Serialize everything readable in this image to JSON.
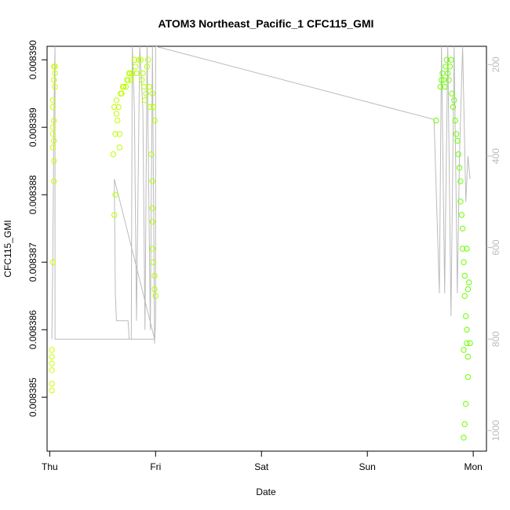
{
  "chart_data": {
    "type": "scatter",
    "title": "ATOM3 Northeast_Pacific_1 CFC115_GMI",
    "xlabel": "Date",
    "ylabel": "CFC115_GMI",
    "x_ticks": [
      "Thu",
      "Fri",
      "Sat",
      "Sun",
      "Mon"
    ],
    "y_ticks": [
      "0.008385",
      "0.008386",
      "0.008387",
      "0.008388",
      "0.008389",
      "0.008390"
    ],
    "y_tick_values": [
      0.008385,
      0.008386,
      0.008387,
      0.008388,
      0.008389,
      0.00839
    ],
    "y2_ticks": [
      "200",
      "400",
      "600",
      "800",
      "1000"
    ],
    "y2_tick_values": [
      200,
      400,
      600,
      800,
      1000
    ],
    "ylim": [
      0.0083842,
      0.0083902
    ],
    "xlim_days": [
      -0.025,
      4.125
    ],
    "y2lim": [
      1045,
      160
    ],
    "series": [
      {
        "kind": "points",
        "color_scale": [
          "#ccff00",
          "#66ff00"
        ],
        "values": [
          [
            0.02,
            0.0083857
          ],
          [
            0.02,
            0.0083856
          ],
          [
            0.02,
            0.0083855
          ],
          [
            0.02,
            0.0083854
          ],
          [
            0.02,
            0.0083852
          ],
          [
            0.02,
            0.0083851
          ],
          [
            0.03,
            0.008387
          ],
          [
            0.03,
            0.0083887
          ],
          [
            0.03,
            0.0083889
          ],
          [
            0.03,
            0.008389
          ],
          [
            0.03,
            0.0083893
          ],
          [
            0.03,
            0.0083894
          ],
          [
            0.04,
            0.0083882
          ],
          [
            0.04,
            0.0083885
          ],
          [
            0.04,
            0.0083888
          ],
          [
            0.04,
            0.0083891
          ],
          [
            0.04,
            0.0083899
          ],
          [
            0.04,
            0.0083897
          ],
          [
            0.05,
            0.0083899
          ],
          [
            0.05,
            0.0083898
          ],
          [
            0.05,
            0.0083896
          ],
          [
            0.6,
            0.0083886
          ],
          [
            0.61,
            0.0083893
          ],
          [
            0.61,
            0.0083877
          ],
          [
            0.62,
            0.008388
          ],
          [
            0.62,
            0.0083889
          ],
          [
            0.63,
            0.0083892
          ],
          [
            0.63,
            0.0083894
          ],
          [
            0.64,
            0.0083891
          ],
          [
            0.65,
            0.0083893
          ],
          [
            0.66,
            0.0083889
          ],
          [
            0.66,
            0.0083887
          ],
          [
            0.67,
            0.0083895
          ],
          [
            0.68,
            0.0083895
          ],
          [
            0.69,
            0.0083896
          ],
          [
            0.7,
            0.0083896
          ],
          [
            0.72,
            0.0083896
          ],
          [
            0.73,
            0.0083897
          ],
          [
            0.74,
            0.0083897
          ],
          [
            0.75,
            0.0083898
          ],
          [
            0.76,
            0.0083898
          ],
          [
            0.77,
            0.0083897
          ],
          [
            0.78,
            0.0083898
          ],
          [
            0.8,
            0.00839
          ],
          [
            0.81,
            0.0083899
          ],
          [
            0.82,
            0.0083898
          ],
          [
            0.84,
            0.00839
          ],
          [
            0.86,
            0.00839
          ],
          [
            0.87,
            0.0083897
          ],
          [
            0.88,
            0.0083898
          ],
          [
            0.89,
            0.0083896
          ],
          [
            0.9,
            0.0083894
          ],
          [
            0.91,
            0.0083895
          ],
          [
            0.92,
            0.0083899
          ],
          [
            0.93,
            0.00839
          ],
          [
            0.94,
            0.0083896
          ],
          [
            0.95,
            0.0083893
          ],
          [
            0.96,
            0.0083886
          ],
          [
            0.97,
            0.0083882
          ],
          [
            0.97,
            0.0083878
          ],
          [
            0.97,
            0.0083876
          ],
          [
            0.97,
            0.0083872
          ],
          [
            0.98,
            0.008387
          ],
          [
            0.99,
            0.0083868
          ],
          [
            0.99,
            0.0083866
          ],
          [
            1.0,
            0.0083865
          ],
          [
            0.98,
            0.0083893
          ],
          [
            0.99,
            0.0083891
          ],
          [
            0.97,
            0.0083895
          ],
          [
            3.65,
            0.0083891
          ],
          [
            3.69,
            0.0083896
          ],
          [
            3.7,
            0.0083897
          ],
          [
            3.71,
            0.0083898
          ],
          [
            3.72,
            0.0083897
          ],
          [
            3.73,
            0.0083896
          ],
          [
            3.74,
            0.0083899
          ],
          [
            3.75,
            0.00839
          ],
          [
            3.76,
            0.0083898
          ],
          [
            3.77,
            0.0083897
          ],
          [
            3.78,
            0.0083899
          ],
          [
            3.79,
            0.00839
          ],
          [
            3.8,
            0.0083895
          ],
          [
            3.81,
            0.0083893
          ],
          [
            3.82,
            0.0083894
          ],
          [
            3.83,
            0.0083891
          ],
          [
            3.84,
            0.0083889
          ],
          [
            3.85,
            0.0083888
          ],
          [
            3.86,
            0.0083886
          ],
          [
            3.87,
            0.0083884
          ],
          [
            3.88,
            0.0083882
          ],
          [
            3.88,
            0.0083879
          ],
          [
            3.89,
            0.0083877
          ],
          [
            3.9,
            0.0083875
          ],
          [
            3.9,
            0.0083872
          ],
          [
            3.91,
            0.008387
          ],
          [
            3.92,
            0.0083868
          ],
          [
            3.92,
            0.0083865
          ],
          [
            3.93,
            0.0083862
          ],
          [
            3.94,
            0.008386
          ],
          [
            3.94,
            0.0083858
          ],
          [
            3.95,
            0.0083856
          ],
          [
            3.95,
            0.0083853
          ],
          [
            3.93,
            0.0083849
          ],
          [
            3.92,
            0.0083846
          ],
          [
            3.91,
            0.0083844
          ],
          [
            3.91,
            0.0083857
          ],
          [
            3.94,
            0.0083872
          ],
          [
            3.95,
            0.0083866
          ],
          [
            3.96,
            0.0083867
          ],
          [
            3.97,
            0.0083858
          ]
        ]
      },
      {
        "kind": "line",
        "axis": "y2",
        "color": "#bbbbbb",
        "values": [
          [
            0.02,
            800
          ],
          [
            0.03,
            600
          ],
          [
            0.04,
            300
          ],
          [
            0.05,
            160
          ],
          [
            0.05,
            800
          ],
          [
            0.99,
            800
          ],
          [
            0.61,
            450
          ],
          [
            0.62,
            700
          ],
          [
            0.63,
            760
          ],
          [
            0.74,
            760
          ],
          [
            0.75,
            800
          ],
          [
            0.77,
            800
          ],
          [
            0.78,
            160
          ],
          [
            0.8,
            300
          ],
          [
            0.82,
            760
          ],
          [
            0.85,
            160
          ],
          [
            0.88,
            300
          ],
          [
            0.9,
            780
          ],
          [
            0.92,
            160
          ],
          [
            0.95,
            780
          ],
          [
            0.97,
            160
          ],
          [
            0.99,
            810
          ],
          [
            1.0,
            760
          ],
          [
            1.0,
            160
          ],
          [
            3.63,
            320
          ],
          [
            3.68,
            700
          ],
          [
            3.7,
            160
          ],
          [
            3.73,
            700
          ],
          [
            3.76,
            160
          ],
          [
            3.79,
            750
          ],
          [
            3.82,
            160
          ],
          [
            3.85,
            700
          ],
          [
            3.87,
            400
          ],
          [
            3.9,
            160
          ],
          [
            3.93,
            500
          ],
          [
            3.95,
            400
          ],
          [
            3.97,
            450
          ]
        ]
      }
    ],
    "grid": false
  }
}
